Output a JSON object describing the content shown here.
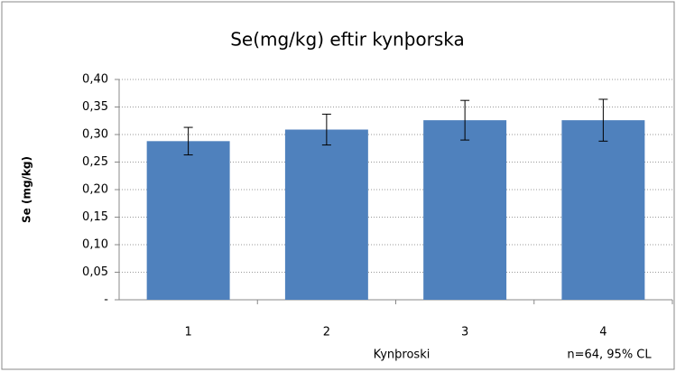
{
  "chart_data": {
    "type": "bar",
    "title": "Se(mg/kg) eftir kynþorska",
    "x_label": "Kynþroski",
    "y_label": "Se (mg/kg)",
    "annotation": "n=64, 95% CL",
    "categories": [
      "1",
      "2",
      "3",
      "4"
    ],
    "values": [
      0.288,
      0.309,
      0.326,
      0.326
    ],
    "errors": [
      0.025,
      0.028,
      0.036,
      0.038
    ],
    "color": "#4f81bd",
    "ylim": [
      0,
      0.4
    ],
    "yticks": [
      {
        "value": 0,
        "label": "-"
      },
      {
        "value": 0.05,
        "label": "0,05"
      },
      {
        "value": 0.1,
        "label": "0,10"
      },
      {
        "value": 0.15,
        "label": "0,15"
      },
      {
        "value": 0.2,
        "label": "0,20"
      },
      {
        "value": 0.25,
        "label": "0,25"
      },
      {
        "value": 0.3,
        "label": "0,30"
      },
      {
        "value": 0.35,
        "label": "0,35"
      },
      {
        "value": 0.4,
        "label": "0,40"
      }
    ],
    "grid": true
  }
}
